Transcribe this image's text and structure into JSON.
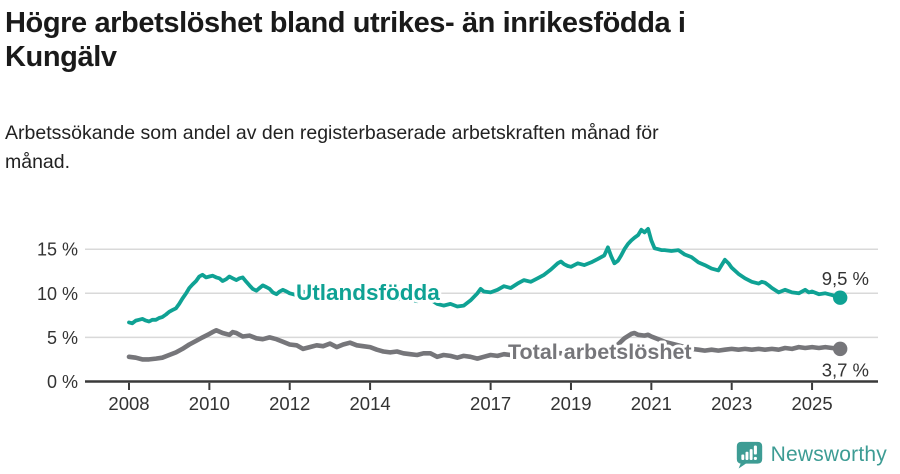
{
  "header": {
    "title_line1": "Högre arbetslöshet bland utrikes- än inrikesfödda i",
    "title_line2": "Kungälv",
    "subtitle_line1": "Arbetssökande som andel av den registerbaserade arbetskraften månad för",
    "subtitle_line2": "månad."
  },
  "chart_data": {
    "type": "line",
    "title": "Högre arbetslöshet bland utrikes- än inrikesfödda i Kungälv",
    "subtitle": "Arbetssökande som andel av den registerbaserade arbetskraften månad för månad.",
    "x_unit": "decimal year (monthly observations)",
    "y_unit": "percent of labour force",
    "ylim": [
      0,
      17.5
    ],
    "xlim": [
      2008,
      2025.9
    ],
    "grid": "horizontal",
    "yticks": [
      {
        "value": 0,
        "label": "0 %"
      },
      {
        "value": 5,
        "label": "5 %"
      },
      {
        "value": 10,
        "label": "10 %"
      },
      {
        "value": 15,
        "label": "15 %"
      }
    ],
    "xticks": [
      {
        "year": 2008,
        "label": "2008"
      },
      {
        "year": 2010,
        "label": "2010"
      },
      {
        "year": 2012,
        "label": "2012"
      },
      {
        "year": 2014,
        "label": "2014"
      },
      {
        "year": 2017,
        "label": "2017"
      },
      {
        "year": 2019,
        "label": "2019"
      },
      {
        "year": 2021,
        "label": "2021"
      },
      {
        "year": 2023,
        "label": "2023"
      },
      {
        "year": 2025,
        "label": "2025"
      }
    ],
    "series": [
      {
        "name": "Utlandsfödda",
        "color": "#0fa294",
        "end_value": 9.5,
        "end_label": "9,5 %",
        "points": [
          [
            2008.0,
            6.7
          ],
          [
            2008.08,
            6.6
          ],
          [
            2008.17,
            6.9
          ],
          [
            2008.25,
            7.0
          ],
          [
            2008.33,
            7.1
          ],
          [
            2008.42,
            6.9
          ],
          [
            2008.5,
            6.8
          ],
          [
            2008.58,
            7.0
          ],
          [
            2008.67,
            7.0
          ],
          [
            2008.75,
            7.2
          ],
          [
            2008.83,
            7.3
          ],
          [
            2008.92,
            7.6
          ],
          [
            2009.0,
            7.9
          ],
          [
            2009.08,
            8.1
          ],
          [
            2009.17,
            8.3
          ],
          [
            2009.25,
            8.8
          ],
          [
            2009.33,
            9.4
          ],
          [
            2009.42,
            10.0
          ],
          [
            2009.5,
            10.6
          ],
          [
            2009.58,
            11.0
          ],
          [
            2009.67,
            11.4
          ],
          [
            2009.75,
            11.9
          ],
          [
            2009.83,
            12.1
          ],
          [
            2009.92,
            11.8
          ],
          [
            2010.0,
            11.9
          ],
          [
            2010.08,
            12.0
          ],
          [
            2010.17,
            11.8
          ],
          [
            2010.25,
            11.7
          ],
          [
            2010.33,
            11.4
          ],
          [
            2010.42,
            11.6
          ],
          [
            2010.5,
            11.9
          ],
          [
            2010.58,
            11.7
          ],
          [
            2010.67,
            11.5
          ],
          [
            2010.75,
            11.7
          ],
          [
            2010.83,
            11.8
          ],
          [
            2010.92,
            11.3
          ],
          [
            2011.0,
            10.9
          ],
          [
            2011.08,
            10.5
          ],
          [
            2011.17,
            10.3
          ],
          [
            2011.25,
            10.6
          ],
          [
            2011.33,
            10.9
          ],
          [
            2011.42,
            10.7
          ],
          [
            2011.5,
            10.5
          ],
          [
            2011.58,
            10.1
          ],
          [
            2011.67,
            9.9
          ],
          [
            2011.75,
            10.2
          ],
          [
            2011.83,
            10.4
          ],
          [
            2011.92,
            10.2
          ],
          [
            2012.0,
            10.0
          ],
          [
            2012.17,
            9.8
          ],
          [
            2012.33,
            10.2
          ],
          [
            2012.5,
            9.9
          ],
          [
            2012.67,
            10.3
          ],
          [
            2012.83,
            10.1
          ],
          [
            2013.0,
            10.2
          ],
          [
            2013.17,
            9.9
          ],
          [
            2013.33,
            10.1
          ],
          [
            2013.5,
            9.8
          ],
          [
            2013.67,
            10.0
          ],
          [
            2013.83,
            9.8
          ],
          [
            2014.0,
            9.6
          ],
          [
            2014.17,
            9.4
          ],
          [
            2014.33,
            9.7
          ],
          [
            2014.5,
            9.5
          ],
          [
            2014.67,
            9.3
          ],
          [
            2014.83,
            9.5
          ],
          [
            2015.0,
            9.3
          ],
          [
            2015.17,
            9.1
          ],
          [
            2015.33,
            9.4
          ],
          [
            2015.5,
            9.3
          ],
          [
            2015.67,
            8.8
          ],
          [
            2015.83,
            8.6
          ],
          [
            2016.0,
            8.8
          ],
          [
            2016.17,
            8.5
          ],
          [
            2016.33,
            8.6
          ],
          [
            2016.5,
            9.2
          ],
          [
            2016.67,
            10.0
          ],
          [
            2016.75,
            10.5
          ],
          [
            2016.83,
            10.2
          ],
          [
            2017.0,
            10.1
          ],
          [
            2017.17,
            10.4
          ],
          [
            2017.33,
            10.8
          ],
          [
            2017.5,
            10.6
          ],
          [
            2017.67,
            11.1
          ],
          [
            2017.83,
            11.5
          ],
          [
            2018.0,
            11.3
          ],
          [
            2018.17,
            11.7
          ],
          [
            2018.33,
            12.1
          ],
          [
            2018.5,
            12.7
          ],
          [
            2018.67,
            13.4
          ],
          [
            2018.75,
            13.6
          ],
          [
            2018.83,
            13.3
          ],
          [
            2018.92,
            13.1
          ],
          [
            2019.0,
            13.0
          ],
          [
            2019.17,
            13.4
          ],
          [
            2019.33,
            13.2
          ],
          [
            2019.5,
            13.5
          ],
          [
            2019.67,
            13.9
          ],
          [
            2019.83,
            14.3
          ],
          [
            2019.92,
            15.2
          ],
          [
            2020.0,
            14.2
          ],
          [
            2020.08,
            13.4
          ],
          [
            2020.17,
            13.7
          ],
          [
            2020.25,
            14.3
          ],
          [
            2020.33,
            15.0
          ],
          [
            2020.42,
            15.6
          ],
          [
            2020.5,
            16.0
          ],
          [
            2020.58,
            16.3
          ],
          [
            2020.67,
            16.6
          ],
          [
            2020.75,
            17.2
          ],
          [
            2020.83,
            16.9
          ],
          [
            2020.92,
            17.3
          ],
          [
            2021.0,
            16.0
          ],
          [
            2021.08,
            15.1
          ],
          [
            2021.17,
            15.0
          ],
          [
            2021.25,
            14.9
          ],
          [
            2021.33,
            14.9
          ],
          [
            2021.5,
            14.8
          ],
          [
            2021.67,
            14.9
          ],
          [
            2021.83,
            14.4
          ],
          [
            2022.0,
            14.1
          ],
          [
            2022.17,
            13.5
          ],
          [
            2022.33,
            13.2
          ],
          [
            2022.5,
            12.8
          ],
          [
            2022.67,
            12.6
          ],
          [
            2022.83,
            13.8
          ],
          [
            2022.92,
            13.4
          ],
          [
            2023.0,
            12.9
          ],
          [
            2023.17,
            12.2
          ],
          [
            2023.33,
            11.7
          ],
          [
            2023.5,
            11.3
          ],
          [
            2023.67,
            11.1
          ],
          [
            2023.75,
            11.3
          ],
          [
            2023.83,
            11.2
          ],
          [
            2023.92,
            10.9
          ],
          [
            2024.0,
            10.6
          ],
          [
            2024.17,
            10.1
          ],
          [
            2024.33,
            10.4
          ],
          [
            2024.5,
            10.1
          ],
          [
            2024.67,
            10.0
          ],
          [
            2024.83,
            10.4
          ],
          [
            2024.92,
            10.1
          ],
          [
            2025.0,
            10.2
          ],
          [
            2025.17,
            9.9
          ],
          [
            2025.33,
            10.0
          ],
          [
            2025.5,
            9.8
          ],
          [
            2025.7,
            9.5
          ]
        ]
      },
      {
        "name": "Total arbetslöshet",
        "color": "#76767a",
        "end_value": 3.7,
        "end_label": "3,7 %",
        "points": [
          [
            2008.0,
            2.8
          ],
          [
            2008.17,
            2.7
          ],
          [
            2008.33,
            2.5
          ],
          [
            2008.5,
            2.5
          ],
          [
            2008.67,
            2.6
          ],
          [
            2008.83,
            2.7
          ],
          [
            2009.0,
            3.0
          ],
          [
            2009.17,
            3.3
          ],
          [
            2009.33,
            3.7
          ],
          [
            2009.5,
            4.2
          ],
          [
            2009.67,
            4.6
          ],
          [
            2009.83,
            5.0
          ],
          [
            2010.0,
            5.4
          ],
          [
            2010.08,
            5.6
          ],
          [
            2010.17,
            5.8
          ],
          [
            2010.33,
            5.5
          ],
          [
            2010.5,
            5.3
          ],
          [
            2010.58,
            5.6
          ],
          [
            2010.67,
            5.5
          ],
          [
            2010.83,
            5.1
          ],
          [
            2011.0,
            5.2
          ],
          [
            2011.17,
            4.9
          ],
          [
            2011.33,
            4.8
          ],
          [
            2011.5,
            5.0
          ],
          [
            2011.67,
            4.8
          ],
          [
            2011.83,
            4.5
          ],
          [
            2012.0,
            4.2
          ],
          [
            2012.17,
            4.1
          ],
          [
            2012.33,
            3.7
          ],
          [
            2012.5,
            3.9
          ],
          [
            2012.67,
            4.1
          ],
          [
            2012.83,
            4.0
          ],
          [
            2013.0,
            4.3
          ],
          [
            2013.17,
            3.9
          ],
          [
            2013.33,
            4.2
          ],
          [
            2013.5,
            4.4
          ],
          [
            2013.67,
            4.1
          ],
          [
            2013.83,
            4.0
          ],
          [
            2014.0,
            3.9
          ],
          [
            2014.17,
            3.6
          ],
          [
            2014.33,
            3.4
          ],
          [
            2014.5,
            3.3
          ],
          [
            2014.67,
            3.4
          ],
          [
            2014.83,
            3.2
          ],
          [
            2015.0,
            3.1
          ],
          [
            2015.17,
            3.0
          ],
          [
            2015.33,
            3.2
          ],
          [
            2015.5,
            3.2
          ],
          [
            2015.67,
            2.8
          ],
          [
            2015.83,
            3.0
          ],
          [
            2016.0,
            2.9
          ],
          [
            2016.17,
            2.7
          ],
          [
            2016.33,
            2.9
          ],
          [
            2016.5,
            2.8
          ],
          [
            2016.67,
            2.6
          ],
          [
            2016.83,
            2.8
          ],
          [
            2017.0,
            3.0
          ],
          [
            2017.17,
            2.9
          ],
          [
            2017.33,
            3.1
          ],
          [
            2017.5,
            3.0
          ],
          [
            2017.67,
            3.2
          ],
          [
            2017.83,
            3.1
          ],
          [
            2018.0,
            3.2
          ],
          [
            2018.25,
            3.1
          ],
          [
            2018.5,
            3.3
          ],
          [
            2018.75,
            3.2
          ],
          [
            2019.0,
            3.3
          ],
          [
            2019.25,
            3.2
          ],
          [
            2019.5,
            3.3
          ],
          [
            2019.75,
            3.2
          ],
          [
            2019.92,
            3.4
          ],
          [
            2020.0,
            3.5
          ],
          [
            2020.17,
            4.2
          ],
          [
            2020.33,
            4.9
          ],
          [
            2020.5,
            5.4
          ],
          [
            2020.58,
            5.5
          ],
          [
            2020.67,
            5.3
          ],
          [
            2020.83,
            5.2
          ],
          [
            2020.92,
            5.3
          ],
          [
            2021.0,
            5.1
          ],
          [
            2021.17,
            4.8
          ],
          [
            2021.33,
            4.5
          ],
          [
            2021.5,
            4.3
          ],
          [
            2021.67,
            4.1
          ],
          [
            2021.83,
            3.9
          ],
          [
            2022.0,
            3.7
          ],
          [
            2022.17,
            3.6
          ],
          [
            2022.33,
            3.5
          ],
          [
            2022.5,
            3.6
          ],
          [
            2022.67,
            3.5
          ],
          [
            2022.83,
            3.6
          ],
          [
            2023.0,
            3.7
          ],
          [
            2023.17,
            3.6
          ],
          [
            2023.33,
            3.7
          ],
          [
            2023.5,
            3.6
          ],
          [
            2023.67,
            3.7
          ],
          [
            2023.83,
            3.6
          ],
          [
            2024.0,
            3.7
          ],
          [
            2024.17,
            3.6
          ],
          [
            2024.33,
            3.8
          ],
          [
            2024.5,
            3.7
          ],
          [
            2024.67,
            3.9
          ],
          [
            2024.83,
            3.8
          ],
          [
            2025.0,
            3.9
          ],
          [
            2025.17,
            3.8
          ],
          [
            2025.33,
            3.9
          ],
          [
            2025.5,
            3.8
          ],
          [
            2025.7,
            3.7
          ]
        ]
      }
    ]
  },
  "branding": {
    "logo_text": "Newsworthy",
    "logo_color": "#3d9c94"
  }
}
